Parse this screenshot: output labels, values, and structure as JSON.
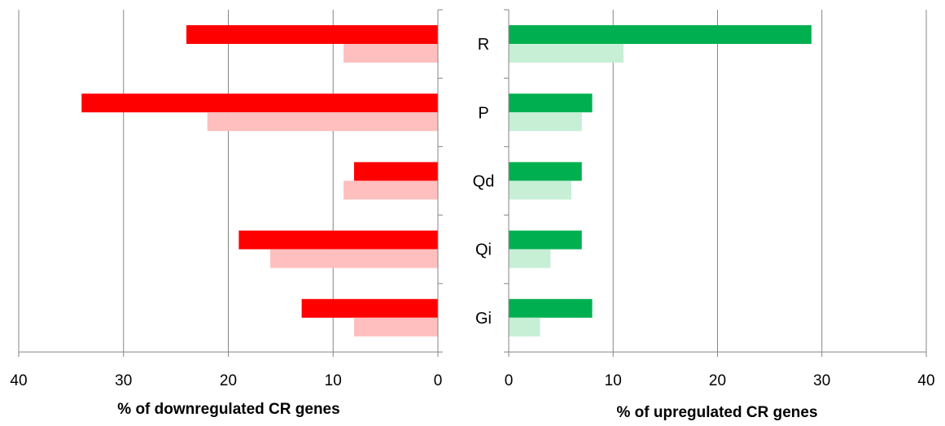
{
  "chart_data": [
    {
      "type": "bar",
      "orientation": "horizontal",
      "direction": "reversed",
      "categories": [
        "R",
        "P",
        "Qd",
        "Qi",
        "Gi"
      ],
      "series": [
        {
          "values": [
            24,
            34,
            8,
            19,
            13
          ],
          "color": "#ff0000"
        },
        {
          "values": [
            9,
            22,
            9,
            16,
            8
          ],
          "color": "#ffbfbf"
        }
      ],
      "xlabel": "% of downregulated CR genes",
      "xlim": [
        0,
        40
      ],
      "xticks": [
        "40",
        "30",
        "20",
        "10",
        "0"
      ],
      "grid": true
    },
    {
      "type": "bar",
      "orientation": "horizontal",
      "categories": [
        "R",
        "P",
        "Qd",
        "Qi",
        "Gi"
      ],
      "series": [
        {
          "values": [
            29,
            8,
            7,
            7,
            8
          ],
          "color": "#00b050"
        },
        {
          "values": [
            11,
            7,
            6,
            4,
            3
          ],
          "color": "#c6efd6"
        }
      ],
      "xlabel": "% of upregulated CR genes",
      "xlim": [
        0,
        40
      ],
      "xticks": [
        "0",
        "10",
        "20",
        "30",
        "40"
      ],
      "grid": true
    }
  ]
}
